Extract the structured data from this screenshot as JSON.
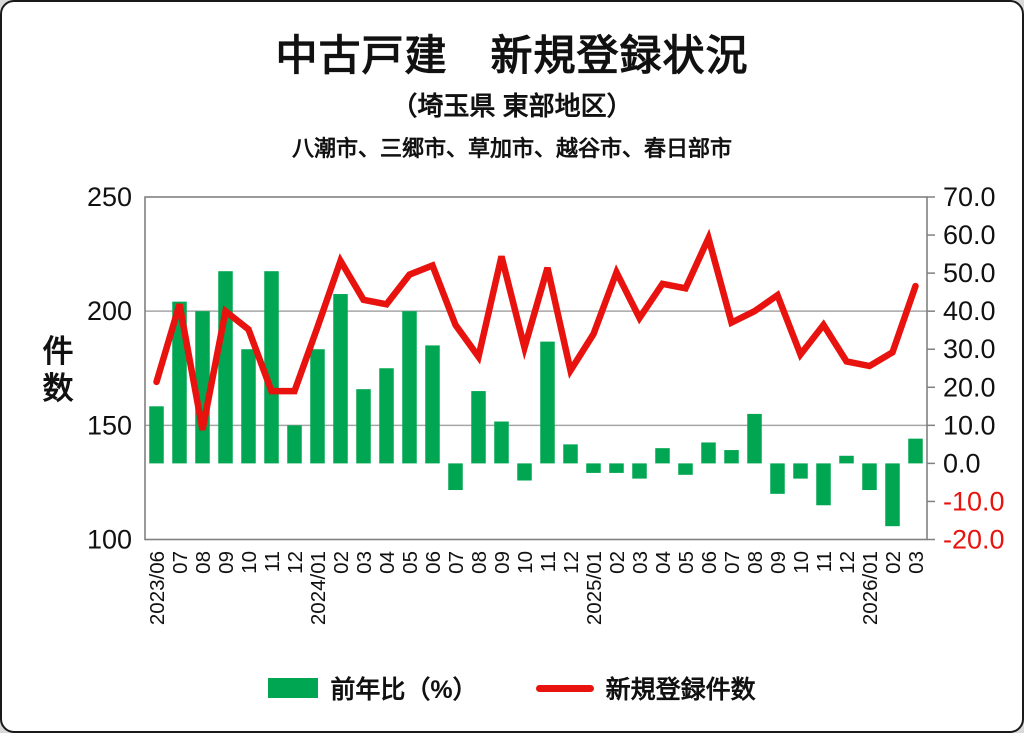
{
  "title": "中古戸建　新規登録状況",
  "subtitle": "（埼玉県 東部地区）",
  "region_note": "八潮市、三郷市、草加市、越谷市、春日部市",
  "colors": {
    "bar_green": "#00a651",
    "line_red": "#e8120e",
    "negative_label_red": "#e8120e",
    "gridline_gray": "#a6a6a6",
    "axis_gray": "#808080",
    "text_black": "#111111"
  },
  "legend": {
    "bar_label": "前年比（%）",
    "line_label": "新規登録件数"
  },
  "chart_data": {
    "type": "bar+line combo",
    "title": "中古戸建 新規登録状況（埼玉県 東部地区）",
    "categories": [
      "2023/06",
      "07",
      "08",
      "09",
      "10",
      "11",
      "12",
      "2024/01",
      "02",
      "03",
      "04",
      "05",
      "06",
      "07",
      "08",
      "09",
      "10",
      "11",
      "12",
      "2025/01",
      "02",
      "03",
      "04",
      "05",
      "06",
      "07",
      "08",
      "09",
      "10",
      "11",
      "12",
      "2026/01",
      "02",
      "03"
    ],
    "series": [
      {
        "name": "前年比（%）",
        "type": "bar",
        "axis": "right",
        "color": "#00a651",
        "values": [
          15,
          42.5,
          40,
          50.5,
          30,
          50.5,
          10,
          30,
          44.5,
          19.5,
          25,
          40,
          31,
          -7,
          19,
          11,
          -4.5,
          32,
          5,
          -2.5,
          -2.5,
          -4,
          4,
          -3,
          5.5,
          3.5,
          13,
          -8,
          -4,
          -11,
          2,
          -7,
          -16.5,
          6.5
        ]
      },
      {
        "name": "新規登録件数",
        "type": "line",
        "axis": "left",
        "color": "#e8120e",
        "values": [
          169,
          203,
          148,
          200,
          192,
          165,
          165,
          193,
          222,
          205,
          203,
          216,
          220,
          194,
          180,
          224,
          184,
          219,
          174,
          190,
          217,
          197,
          212,
          210,
          232,
          195,
          200,
          207,
          181,
          194,
          178,
          176,
          182,
          211
        ]
      }
    ],
    "left_axis": {
      "label": "件数",
      "min": 100,
      "max": 250,
      "ticks": [
        250,
        200,
        150,
        100
      ]
    },
    "right_axis": {
      "min": -20,
      "max": 70,
      "ticks": [
        70,
        60,
        50,
        40,
        30,
        20,
        10,
        0,
        -10,
        -20
      ],
      "decimals": 1,
      "negative_tick_color": "#e8120e"
    },
    "gridlines_left_values": [
      200,
      150
    ],
    "legend_position": "bottom",
    "grid": "horizontal-only"
  }
}
